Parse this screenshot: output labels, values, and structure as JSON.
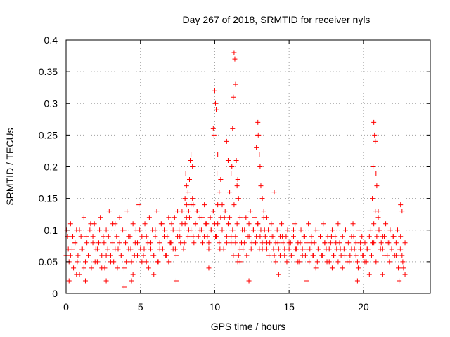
{
  "chart_data": {
    "type": "scatter",
    "title": "Day 267 of 2018, SRMTID for receiver nyls",
    "xlabel": "GPS time / hours",
    "ylabel": "SRMTID / TECUs",
    "xlim": [
      0,
      24.5
    ],
    "ylim": [
      0,
      0.4
    ],
    "grid": true,
    "marker": "+",
    "color": "#ff0000",
    "xticks": [
      0,
      5,
      10,
      15,
      20
    ],
    "xtick_labels": [
      "0",
      "5",
      "10",
      "15",
      "20"
    ],
    "yticks": [
      0,
      0.05,
      0.1,
      0.15,
      0.2,
      0.25,
      0.3,
      0.35,
      0.4
    ],
    "ytick_labels": [
      "0",
      "0.05",
      "0.1",
      "0.15",
      "0.2",
      "0.25",
      "0.3",
      "0.35",
      "0.4"
    ],
    "series": [
      {
        "name": "SRMTID",
        "x": [
          0.0,
          0.1,
          0.2,
          0.3,
          0.4,
          0.5,
          0.6,
          0.7,
          0.8,
          0.9,
          1.0,
          1.1,
          1.2,
          1.3,
          1.4,
          1.5,
          1.6,
          1.7,
          1.8,
          1.9,
          2.0,
          2.1,
          2.2,
          2.3,
          2.4,
          2.5,
          2.6,
          2.7,
          2.8,
          2.9,
          3.0,
          3.1,
          3.2,
          3.3,
          3.4,
          3.5,
          3.6,
          3.7,
          3.8,
          3.9,
          4.0,
          4.1,
          4.2,
          4.3,
          4.4,
          4.5,
          4.6,
          4.7,
          4.8,
          4.9,
          5.0,
          5.1,
          5.2,
          5.3,
          5.4,
          5.5,
          5.6,
          5.7,
          5.8,
          5.9,
          6.0,
          6.1,
          6.2,
          6.3,
          6.4,
          6.5,
          6.6,
          6.7,
          6.8,
          6.9,
          7.0,
          7.1,
          7.2,
          7.3,
          7.4,
          7.5,
          7.6,
          7.7,
          7.8,
          7.9,
          8.0,
          8.1,
          8.2,
          8.3,
          8.4,
          8.5,
          8.6,
          8.7,
          8.8,
          8.9,
          9.0,
          9.1,
          9.2,
          9.3,
          9.4,
          9.5,
          9.6,
          9.7,
          9.8,
          9.9,
          10.0,
          10.1,
          10.2,
          10.3,
          10.4,
          10.5,
          10.6,
          10.7,
          10.8,
          10.9,
          11.0,
          11.1,
          11.2,
          11.3,
          11.4,
          11.5,
          11.6,
          11.7,
          11.8,
          11.9,
          12.0,
          12.1,
          12.2,
          12.3,
          12.4,
          12.5,
          12.6,
          12.7,
          12.8,
          12.9,
          13.0,
          13.1,
          13.2,
          13.3,
          13.4,
          13.5,
          13.6,
          13.7,
          13.8,
          13.9,
          14.0,
          14.1,
          14.2,
          14.3,
          14.4,
          14.5,
          14.6,
          14.7,
          14.8,
          14.9,
          15.0,
          15.1,
          15.2,
          15.3,
          15.4,
          15.5,
          15.6,
          15.7,
          15.8,
          15.9,
          16.0,
          16.1,
          16.2,
          16.3,
          16.4,
          16.5,
          16.6,
          16.7,
          16.8,
          16.9,
          17.0,
          17.1,
          17.2,
          17.3,
          17.4,
          17.5,
          17.6,
          17.7,
          17.8,
          17.9,
          18.0,
          18.1,
          18.2,
          18.3,
          18.4,
          18.5,
          18.6,
          18.7,
          18.8,
          18.9,
          19.0,
          19.1,
          19.2,
          19.3,
          19.4,
          19.5,
          19.6,
          19.7,
          19.8,
          19.9,
          20.0,
          20.1,
          20.2,
          20.3,
          20.4,
          20.5,
          20.6,
          20.7,
          20.8,
          20.9,
          21.0,
          21.1,
          21.2,
          21.3,
          21.4,
          21.5,
          21.6,
          21.7,
          21.8,
          21.9,
          22.0,
          22.1,
          22.2,
          22.3,
          22.4,
          22.5,
          22.6,
          22.7,
          22.8,
          0.05,
          0.15,
          0.3,
          0.45,
          0.6,
          0.75,
          0.9,
          1.05,
          1.2,
          1.35,
          1.5,
          1.65,
          1.8,
          1.95,
          2.1,
          2.25,
          2.4,
          2.55,
          2.7,
          2.85,
          3.0,
          3.15,
          3.3,
          3.45,
          3.6,
          3.75,
          3.9,
          4.05,
          4.2,
          4.35,
          4.5,
          4.65,
          4.8,
          4.95,
          5.1,
          5.25,
          5.4,
          5.55,
          5.7,
          5.85,
          6.0,
          6.15,
          6.3,
          6.45,
          6.6,
          6.75,
          6.9,
          7.05,
          7.2,
          7.35,
          7.5,
          7.65,
          7.8,
          7.95,
          8.1,
          8.25,
          8.4,
          8.55,
          8.7,
          8.85,
          9.0,
          9.15,
          9.3,
          9.45,
          9.6,
          9.75,
          9.9,
          10.05,
          10.2,
          10.35,
          10.5,
          10.65,
          10.8,
          10.95,
          11.1,
          11.25,
          11.4,
          11.55,
          11.7,
          11.85,
          12.0,
          12.15,
          12.3,
          12.45,
          12.6,
          12.75,
          12.9,
          13.05,
          13.2,
          13.35,
          13.5,
          13.65,
          13.8,
          13.95,
          14.1,
          14.25,
          14.4,
          14.55,
          14.7,
          14.85,
          15.0,
          15.15,
          15.3,
          15.45,
          15.6,
          15.75,
          15.9,
          16.05,
          16.2,
          16.35,
          16.5,
          16.65,
          16.8,
          16.95,
          17.1,
          17.25,
          17.4,
          17.55,
          17.7,
          17.85,
          18.0,
          18.15,
          18.3,
          18.45,
          18.6,
          18.75,
          18.9,
          19.05,
          19.2,
          19.35,
          19.5,
          19.65,
          19.8,
          19.95,
          20.1,
          20.25,
          20.4,
          20.55,
          20.7,
          20.85,
          21.0,
          21.15,
          21.3,
          21.45,
          21.6,
          21.75,
          21.9,
          22.05,
          22.2,
          22.35,
          22.5,
          22.65,
          22.8,
          8.0,
          8.05,
          8.1,
          8.2,
          8.25,
          8.3,
          8.35,
          8.4,
          8.5,
          8.55,
          9.9,
          9.95,
          10.0,
          10.05,
          10.1,
          10.15,
          10.2,
          10.3,
          10.4,
          10.5,
          10.8,
          10.9,
          11.0,
          11.1,
          11.15,
          11.2,
          11.25,
          11.3,
          11.35,
          11.4,
          11.45,
          11.5,
          11.55,
          11.6,
          11.7,
          12.8,
          12.85,
          12.9,
          12.95,
          13.0,
          13.05,
          13.1,
          13.2,
          13.3,
          13.5,
          14.0,
          20.6,
          20.65,
          20.7,
          20.75,
          20.8,
          20.85,
          20.9,
          21.0,
          21.1,
          22.5,
          22.6,
          0.2,
          0.7,
          1.3,
          2.7,
          3.9,
          4.4,
          5.9,
          7.4,
          9.6,
          12.3,
          14.3,
          16.2,
          17.9,
          19.6,
          21.3,
          22.4
        ],
        "y": [
          0.06,
          0.09,
          0.05,
          0.11,
          0.07,
          0.04,
          0.08,
          0.1,
          0.06,
          0.03,
          0.09,
          0.07,
          0.12,
          0.05,
          0.08,
          0.06,
          0.1,
          0.04,
          0.09,
          0.11,
          0.07,
          0.05,
          0.08,
          0.12,
          0.06,
          0.09,
          0.04,
          0.1,
          0.07,
          0.13,
          0.06,
          0.08,
          0.05,
          0.11,
          0.09,
          0.07,
          0.12,
          0.06,
          0.1,
          0.04,
          0.08,
          0.13,
          0.07,
          0.09,
          0.05,
          0.11,
          0.06,
          0.1,
          0.08,
          0.14,
          0.07,
          0.09,
          0.06,
          0.11,
          0.05,
          0.08,
          0.12,
          0.07,
          0.1,
          0.06,
          0.09,
          0.13,
          0.05,
          0.08,
          0.11,
          0.07,
          0.1,
          0.06,
          0.09,
          0.05,
          0.08,
          0.11,
          0.07,
          0.12,
          0.06,
          0.09,
          0.1,
          0.08,
          0.13,
          0.07,
          0.11,
          0.14,
          0.09,
          0.12,
          0.1,
          0.15,
          0.08,
          0.11,
          0.13,
          0.09,
          0.12,
          0.1,
          0.08,
          0.14,
          0.11,
          0.09,
          0.07,
          0.12,
          0.1,
          0.13,
          0.11,
          0.09,
          0.14,
          0.08,
          0.12,
          0.1,
          0.07,
          0.13,
          0.09,
          0.11,
          0.12,
          0.08,
          0.1,
          0.14,
          0.09,
          0.11,
          0.06,
          0.05,
          0.08,
          0.07,
          0.1,
          0.12,
          0.09,
          0.11,
          0.13,
          0.08,
          0.1,
          0.12,
          0.09,
          0.11,
          0.07,
          0.1,
          0.08,
          0.12,
          0.09,
          0.07,
          0.1,
          0.08,
          0.11,
          0.09,
          0.06,
          0.08,
          0.1,
          0.07,
          0.09,
          0.11,
          0.08,
          0.06,
          0.09,
          0.1,
          0.07,
          0.08,
          0.06,
          0.09,
          0.11,
          0.07,
          0.08,
          0.05,
          0.1,
          0.07,
          0.09,
          0.06,
          0.08,
          0.11,
          0.07,
          0.09,
          0.06,
          0.08,
          0.1,
          0.05,
          0.07,
          0.09,
          0.06,
          0.11,
          0.08,
          0.07,
          0.09,
          0.05,
          0.08,
          0.1,
          0.06,
          0.09,
          0.07,
          0.11,
          0.08,
          0.06,
          0.09,
          0.07,
          0.1,
          0.05,
          0.08,
          0.06,
          0.09,
          0.11,
          0.07,
          0.08,
          0.05,
          0.1,
          0.07,
          0.09,
          0.06,
          0.08,
          0.05,
          0.07,
          0.09,
          0.1,
          0.08,
          0.11,
          0.13,
          0.09,
          0.12,
          0.1,
          0.08,
          0.07,
          0.09,
          0.11,
          0.06,
          0.08,
          0.1,
          0.07,
          0.09,
          0.06,
          0.08,
          0.1,
          0.07,
          0.09,
          0.06,
          0.04,
          0.08,
          0.1,
          0.07,
          0.06,
          0.09,
          0.08,
          0.05,
          0.1,
          0.07,
          0.04,
          0.09,
          0.06,
          0.11,
          0.08,
          0.05,
          0.07,
          0.1,
          0.04,
          0.08,
          0.06,
          0.09,
          0.05,
          0.11,
          0.07,
          0.04,
          0.08,
          0.06,
          0.1,
          0.05,
          0.09,
          0.07,
          0.03,
          0.08,
          0.06,
          0.1,
          0.05,
          0.07,
          0.09,
          0.04,
          0.08,
          0.06,
          0.1,
          0.05,
          0.07,
          0.11,
          0.09,
          0.06,
          0.12,
          0.08,
          0.1,
          0.07,
          0.13,
          0.09,
          0.11,
          0.08,
          0.12,
          0.1,
          0.14,
          0.09,
          0.11,
          0.13,
          0.1,
          0.12,
          0.09,
          0.11,
          0.08,
          0.1,
          0.13,
          0.09,
          0.11,
          0.07,
          0.1,
          0.12,
          0.08,
          0.11,
          0.09,
          0.06,
          0.08,
          0.05,
          0.07,
          0.1,
          0.08,
          0.06,
          0.09,
          0.07,
          0.1,
          0.08,
          0.11,
          0.09,
          0.07,
          0.1,
          0.08,
          0.06,
          0.09,
          0.07,
          0.05,
          0.08,
          0.06,
          0.09,
          0.07,
          0.05,
          0.08,
          0.06,
          0.1,
          0.07,
          0.05,
          0.08,
          0.06,
          0.09,
          0.07,
          0.05,
          0.08,
          0.06,
          0.04,
          0.07,
          0.09,
          0.06,
          0.08,
          0.05,
          0.07,
          0.09,
          0.06,
          0.08,
          0.05,
          0.07,
          0.04,
          0.06,
          0.08,
          0.05,
          0.07,
          0.09,
          0.06,
          0.04,
          0.08,
          0.06,
          0.05,
          0.07,
          0.03,
          0.06,
          0.08,
          0.05,
          0.1,
          0.07,
          0.09,
          0.06,
          0.08,
          0.05,
          0.07,
          0.09,
          0.06,
          0.04,
          0.07,
          0.05,
          0.03,
          0.15,
          0.19,
          0.17,
          0.16,
          0.13,
          0.18,
          0.21,
          0.22,
          0.2,
          0.14,
          0.26,
          0.25,
          0.32,
          0.3,
          0.29,
          0.19,
          0.22,
          0.16,
          0.18,
          0.14,
          0.24,
          0.21,
          0.16,
          0.19,
          0.2,
          0.26,
          0.31,
          0.38,
          0.37,
          0.33,
          0.21,
          0.17,
          0.18,
          0.15,
          0.12,
          0.23,
          0.25,
          0.27,
          0.25,
          0.22,
          0.2,
          0.17,
          0.15,
          0.13,
          0.12,
          0.16,
          0.15,
          0.2,
          0.27,
          0.25,
          0.24,
          0.19,
          0.17,
          0.13,
          0.1,
          0.14,
          0.13,
          0.02,
          0.03,
          0.02,
          0.02,
          0.01,
          0.02,
          0.03,
          0.02,
          0.04,
          0.02,
          0.03,
          0.02,
          0.04,
          0.02,
          0.03,
          0.02
        ]
      }
    ]
  }
}
